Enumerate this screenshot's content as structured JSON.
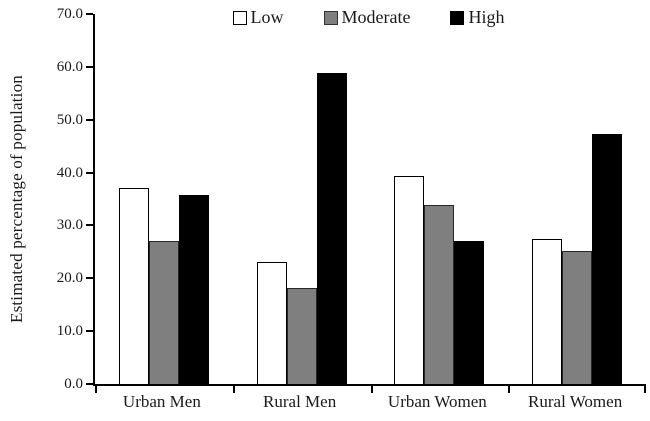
{
  "chart_data": {
    "type": "bar",
    "title": "",
    "xlabel": "",
    "ylabel": "Estimated percentage of population",
    "categories": [
      "Urban Men",
      "Rural Men",
      "Urban Women",
      "Rural Women"
    ],
    "series": [
      {
        "name": "Low",
        "fill": "#ffffff",
        "border": "#000000",
        "values": [
          37.1,
          23.1,
          39.4,
          27.4
        ]
      },
      {
        "name": "Moderate",
        "fill": "#7f7f7f",
        "border": "#262626",
        "values": [
          27.1,
          18.1,
          33.8,
          25.1
        ]
      },
      {
        "name": "High",
        "fill": "#000000",
        "border": "#000000",
        "values": [
          35.8,
          58.9,
          27.0,
          47.3
        ]
      }
    ],
    "ylim": [
      0,
      70
    ],
    "ytick_step": 10,
    "ytick_labels": [
      "0.0",
      "10.0",
      "20.0",
      "30.0",
      "40.0",
      "50.0",
      "60.0",
      "70.0"
    ],
    "grid": false,
    "legend_position": "top-center",
    "bar_outline_color": "#000000",
    "axis_color": "#000000",
    "background_color": "#ffffff"
  }
}
